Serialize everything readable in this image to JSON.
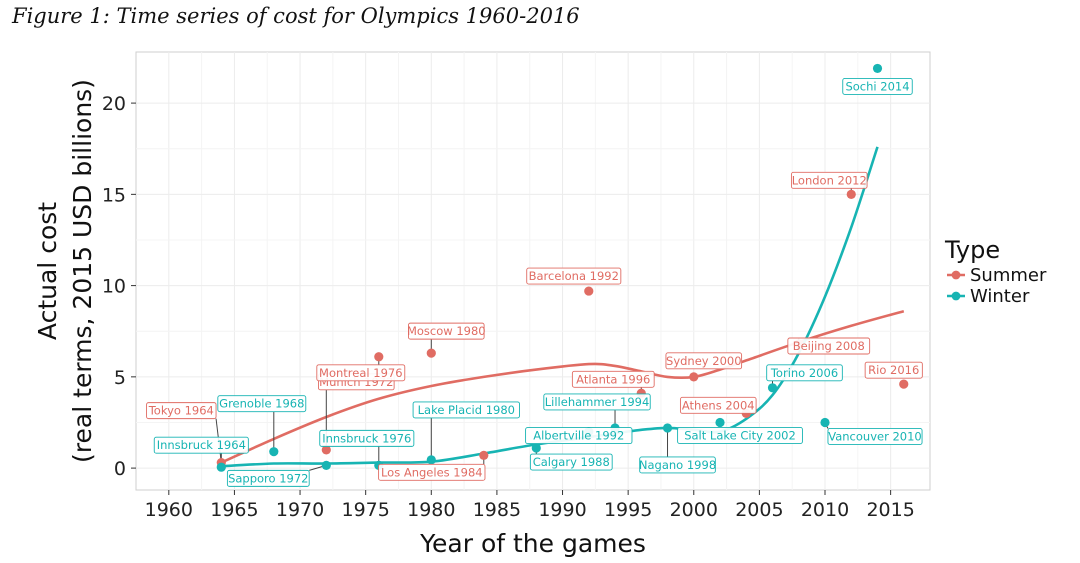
{
  "caption": "Figure 1: Time series of cost for Olympics 1960-2016",
  "colors": {
    "summer": "#e06c63",
    "winter": "#17b4b3",
    "panel": "#ffffff",
    "grid": "#ececec",
    "frame": "#cfcfcf"
  },
  "chart_data": {
    "type": "scatter",
    "xlabel": "Year of the games",
    "ylabel": [
      "Actual cost",
      "(real terms, 2015 USD billions)"
    ],
    "xlim": [
      1957.5,
      2018
    ],
    "ylim": [
      -1.2,
      22.8
    ],
    "xticks": [
      1960,
      1965,
      1970,
      1975,
      1980,
      1985,
      1990,
      1995,
      2000,
      2005,
      2010,
      2015
    ],
    "yticks": [
      0,
      5,
      10,
      15,
      20
    ],
    "grid": true,
    "legend": {
      "title": "Type",
      "position": "right",
      "entries": [
        "Summer",
        "Winter"
      ]
    },
    "series": [
      {
        "name": "Summer",
        "color_key": "summer",
        "points": [
          {
            "label": "Tokyo 1964",
            "x": 1964,
            "y": 0.3
          },
          {
            "label": "Munich 1972",
            "x": 1972,
            "y": 1.0
          },
          {
            "label": "Montreal 1976",
            "x": 1976,
            "y": 6.1
          },
          {
            "label": "Moscow 1980",
            "x": 1980,
            "y": 6.3
          },
          {
            "label": "Los Angeles 1984",
            "x": 1984,
            "y": 0.7
          },
          {
            "label": "Barcelona 1992",
            "x": 1992,
            "y": 9.7
          },
          {
            "label": "Atlanta 1996",
            "x": 1996,
            "y": 4.1
          },
          {
            "label": "Sydney 2000",
            "x": 2000,
            "y": 5.0
          },
          {
            "label": "Athens 2004",
            "x": 2004,
            "y": 3.0
          },
          {
            "label": "Beijing 2008",
            "x": 2008,
            "y": 6.8
          },
          {
            "label": "London 2012",
            "x": 2012,
            "y": 15.0
          },
          {
            "label": "Rio 2016",
            "x": 2016,
            "y": 4.6
          }
        ],
        "smooth": [
          [
            1964,
            0.3
          ],
          [
            1968,
            1.6
          ],
          [
            1972,
            2.8
          ],
          [
            1976,
            3.8
          ],
          [
            1980,
            4.5
          ],
          [
            1984,
            5.0
          ],
          [
            1988,
            5.4
          ],
          [
            1992,
            5.7
          ],
          [
            1994,
            5.6
          ],
          [
            1996,
            5.3
          ],
          [
            1998,
            5.0
          ],
          [
            2000,
            5.0
          ],
          [
            2002,
            5.4
          ],
          [
            2004,
            5.9
          ],
          [
            2008,
            6.9
          ],
          [
            2012,
            7.8
          ],
          [
            2016,
            8.6
          ]
        ]
      },
      {
        "name": "Winter",
        "color_key": "winter",
        "points": [
          {
            "label": "Innsbruck 1964",
            "x": 1964,
            "y": 0.05
          },
          {
            "label": "Grenoble 1968",
            "x": 1968,
            "y": 0.9
          },
          {
            "label": "Sapporo 1972",
            "x": 1972,
            "y": 0.15
          },
          {
            "label": "Innsbruck 1976",
            "x": 1976,
            "y": 0.15
          },
          {
            "label": "Lake Placid 1980",
            "x": 1980,
            "y": 0.45
          },
          {
            "label": "Calgary 1988",
            "x": 1988,
            "y": 1.1
          },
          {
            "label": "Albertville 1992",
            "x": 1992,
            "y": 2.0
          },
          {
            "label": "Lillehammer 1994",
            "x": 1994,
            "y": 2.2
          },
          {
            "label": "Nagano 1998",
            "x": 1998,
            "y": 2.2
          },
          {
            "label": "Salt Lake City 2002",
            "x": 2002,
            "y": 2.5
          },
          {
            "label": "Torino 2006",
            "x": 2006,
            "y": 4.4
          },
          {
            "label": "Vancouver 2010",
            "x": 2010,
            "y": 2.5
          },
          {
            "label": "Sochi 2014",
            "x": 2014,
            "y": 21.9
          }
        ],
        "smooth": [
          [
            1964,
            0.1
          ],
          [
            1968,
            0.25
          ],
          [
            1972,
            0.25
          ],
          [
            1976,
            0.3
          ],
          [
            1980,
            0.35
          ],
          [
            1984,
            0.8
          ],
          [
            1988,
            1.3
          ],
          [
            1992,
            1.7
          ],
          [
            1994,
            1.9
          ],
          [
            1996,
            2.1
          ],
          [
            1998,
            2.2
          ],
          [
            2000,
            2.1
          ],
          [
            2002,
            2.0
          ],
          [
            2004,
            2.7
          ],
          [
            2006,
            4.0
          ],
          [
            2008,
            6.3
          ],
          [
            2010,
            9.4
          ],
          [
            2012,
            13.2
          ],
          [
            2014,
            17.6
          ]
        ]
      }
    ]
  }
}
